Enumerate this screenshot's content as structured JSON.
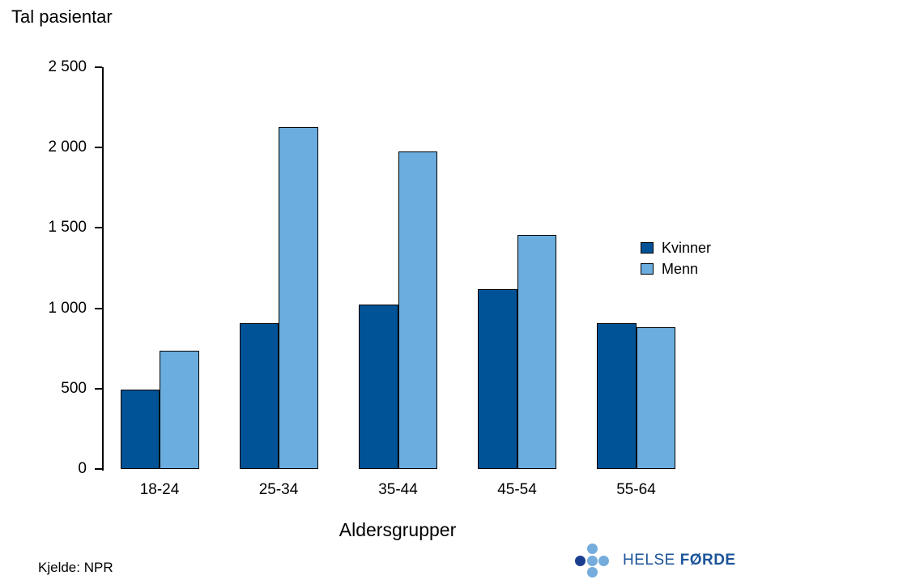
{
  "title": "Tal pasientar",
  "source_note": "Kjelde: NPR",
  "x_axis_title": "Aldersgrupper",
  "logo": {
    "name": "helse-forde-logo",
    "text_regular": "HELSE",
    "text_bold": "FØRDE",
    "text_color": "#1C5499",
    "dark_dot_color": "#1A3E8F",
    "light_dot_color": "#74ACDC"
  },
  "chart_data": {
    "type": "bar",
    "title": "Tal pasientar",
    "xlabel": "Aldersgrupper",
    "ylabel": "",
    "categories": [
      "18-24",
      "25-34",
      "35-44",
      "45-54",
      "55-64"
    ],
    "series": [
      {
        "name": "Kvinner",
        "color": "#005396",
        "values": [
          495,
          905,
          1025,
          1120,
          905
        ]
      },
      {
        "name": "Menn",
        "color": "#6BADDE",
        "values": [
          735,
          2125,
          1975,
          1455,
          880
        ]
      }
    ],
    "ylim": [
      0,
      2500
    ],
    "ytick_interval": 500,
    "ytick_labels": [
      "0",
      "500",
      "1 000",
      "1 500",
      "2 000",
      "2 500"
    ],
    "grid": false,
    "legend_position": "right-middle",
    "bar_border_color": "#000000",
    "axis_color": "#000000"
  }
}
